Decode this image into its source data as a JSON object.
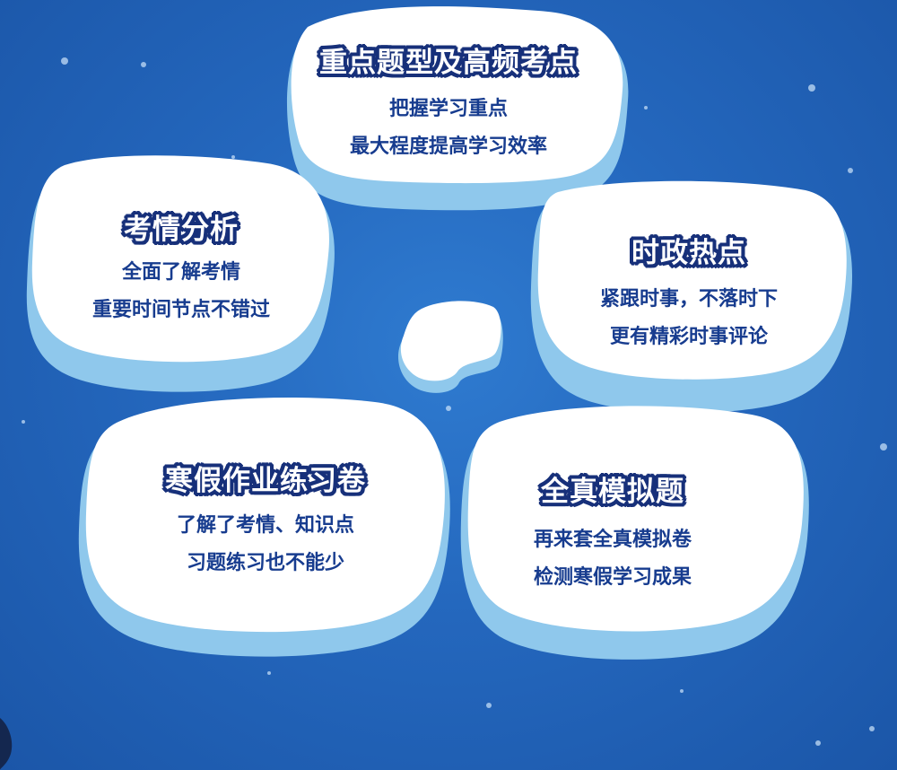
{
  "cards": [
    {
      "title": "重点题型及高频考点",
      "line1": "把握学习重点",
      "line2": "最大程度提高学习效率"
    },
    {
      "title": "考情分析",
      "line1": "全面了解考情",
      "line2": "重要时间节点不错过"
    },
    {
      "title": "时政热点",
      "line1": "紧跟时事，不落时下",
      "line2": "更有精彩时事评论"
    },
    {
      "title": "寒假作业练习卷",
      "line1": "了解了考情、知识点",
      "line2": "习题练习也不能少"
    },
    {
      "title": "全真模拟题",
      "line1": "再来套全真模拟卷",
      "line2": "检测寒假学习成果"
    }
  ],
  "colors": {
    "background": "#2467bd",
    "ice_top": "#ffffff",
    "ice_edge": "#a9d8f2",
    "title_outline": "#17307a",
    "body_text": "#173c8f"
  }
}
